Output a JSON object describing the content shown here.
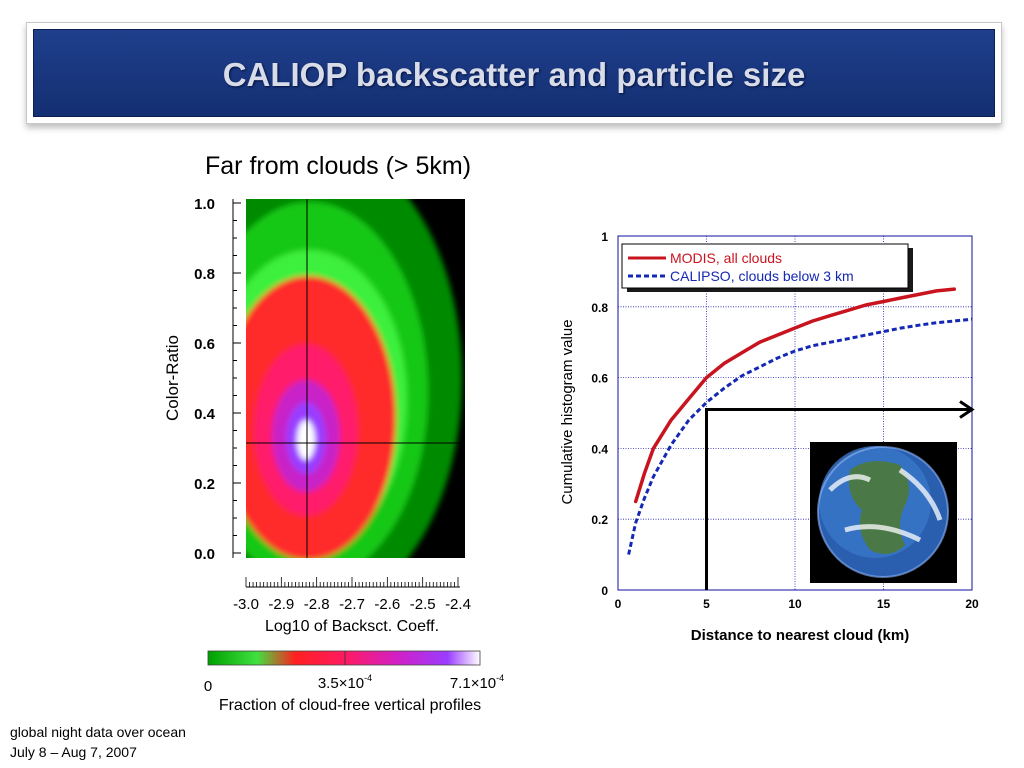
{
  "slide": {
    "title": "CALIOP backscatter and particle size",
    "subtitle": "Far from clouds (> 5km)",
    "footnote_line1": "global night data over ocean",
    "footnote_line2": "July 8 – Aug 7, 2007"
  },
  "colorbar": {
    "label_min": "0",
    "label_mid": "3.5×10",
    "label_mid_exp": "-4",
    "label_max": "7.1×10",
    "label_max_exp": "-4",
    "caption": "Fraction of cloud-free vertical profiles"
  },
  "chart_data": [
    {
      "type": "heatmap",
      "xlabel": "Log10 of Backsct. Coeff.",
      "ylabel": "Color-Ratio",
      "x_ticks": [
        "-3.0",
        "-2.9",
        "-2.8",
        "-2.7",
        "-2.6",
        "-2.5",
        "-2.4"
      ],
      "y_ticks": [
        "0.0",
        "0.2",
        "0.4",
        "0.6",
        "0.8",
        "1.0"
      ],
      "xlim": [
        -3.0,
        -2.4
      ],
      "ylim": [
        0.0,
        1.0
      ],
      "distribution_peak": {
        "x": -2.82,
        "y": 0.3
      },
      "crosshair": {
        "x": -2.82,
        "y": 0.31
      },
      "colors": [
        "#000000",
        "#00a800",
        "#40ff40",
        "#ff2a2a",
        "#ff1a60",
        "#c020d0",
        "#9a3cff",
        "#ffffff"
      ]
    },
    {
      "type": "line",
      "xlabel": "Distance to nearest cloud (km)",
      "ylabel": "Cumulative histogram value",
      "xlim": [
        0,
        20
      ],
      "ylim": [
        0,
        1
      ],
      "x_ticks": [
        "0",
        "5",
        "10",
        "15",
        "20"
      ],
      "y_ticks": [
        "0",
        "0.2",
        "0.4",
        "0.6",
        "0.8",
        "1"
      ],
      "grid": true,
      "legend_position": "top-left",
      "series": [
        {
          "name": "MODIS, all clouds",
          "color": "#c8141e",
          "style": "solid",
          "x": [
            1,
            1.5,
            2,
            3,
            4,
            5,
            6,
            7,
            8,
            9,
            10,
            11,
            12,
            13,
            14,
            15,
            16,
            17,
            18,
            19
          ],
          "y": [
            0.25,
            0.33,
            0.4,
            0.48,
            0.54,
            0.6,
            0.64,
            0.67,
            0.7,
            0.72,
            0.74,
            0.76,
            0.775,
            0.79,
            0.805,
            0.815,
            0.825,
            0.835,
            0.845,
            0.85
          ]
        },
        {
          "name": "CALIPSO, clouds below 3 km",
          "color": "#1428b4",
          "style": "dashed",
          "x": [
            0.6,
            1,
            1.5,
            2,
            3,
            4,
            5,
            6,
            7,
            8,
            9,
            10,
            11,
            12,
            13,
            14,
            15,
            16,
            17,
            18,
            19,
            20
          ],
          "y": [
            0.1,
            0.19,
            0.26,
            0.32,
            0.41,
            0.48,
            0.53,
            0.57,
            0.605,
            0.63,
            0.655,
            0.675,
            0.69,
            0.7,
            0.71,
            0.72,
            0.73,
            0.74,
            0.748,
            0.755,
            0.76,
            0.765
          ]
        }
      ],
      "annotation_arrow": {
        "from_x": 5,
        "from_y": 0,
        "corner_y": 0.51,
        "to_x": 20
      }
    }
  ]
}
